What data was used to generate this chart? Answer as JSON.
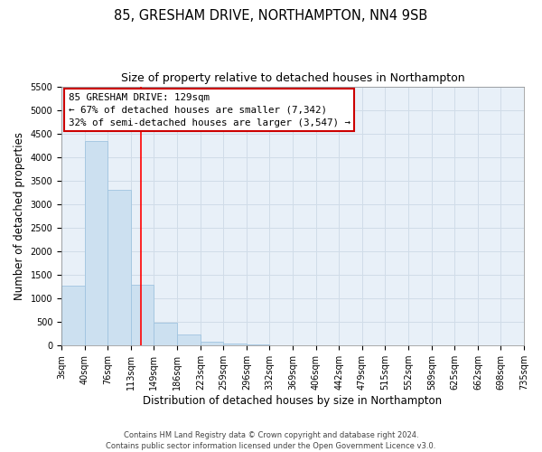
{
  "title1": "85, GRESHAM DRIVE, NORTHAMPTON, NN4 9SB",
  "title2": "Size of property relative to detached houses in Northampton",
  "xlabel": "Distribution of detached houses by size in Northampton",
  "ylabel": "Number of detached properties",
  "bin_edges": [
    3,
    40,
    76,
    113,
    149,
    186,
    223,
    259,
    296,
    332,
    369,
    406,
    442,
    479,
    515,
    552,
    589,
    625,
    662,
    698,
    735
  ],
  "bar_heights": [
    1270,
    4340,
    3300,
    1290,
    480,
    240,
    90,
    50,
    30,
    0,
    0,
    0,
    0,
    0,
    0,
    0,
    0,
    0,
    0,
    0
  ],
  "bar_color": "#cce0f0",
  "bar_edgecolor": "#a0c4e0",
  "ylim": [
    0,
    5500
  ],
  "yticks": [
    0,
    500,
    1000,
    1500,
    2000,
    2500,
    3000,
    3500,
    4000,
    4500,
    5000,
    5500
  ],
  "red_line_x": 129,
  "annotation_title": "85 GRESHAM DRIVE: 129sqm",
  "annotation_line1": "← 67% of detached houses are smaller (7,342)",
  "annotation_line2": "32% of semi-detached houses are larger (3,547) →",
  "annotation_box_color": "#ffffff",
  "annotation_box_edgecolor": "#cc0000",
  "grid_color": "#d0dce8",
  "bg_color": "#e8f0f8",
  "fig_bg_color": "#ffffff",
  "footer1": "Contains HM Land Registry data © Crown copyright and database right 2024.",
  "footer2": "Contains public sector information licensed under the Open Government Licence v3.0.",
  "title_fontsize": 10.5,
  "subtitle_fontsize": 9,
  "tick_fontsize": 7,
  "label_fontsize": 8.5,
  "ann_fontsize": 7.8
}
